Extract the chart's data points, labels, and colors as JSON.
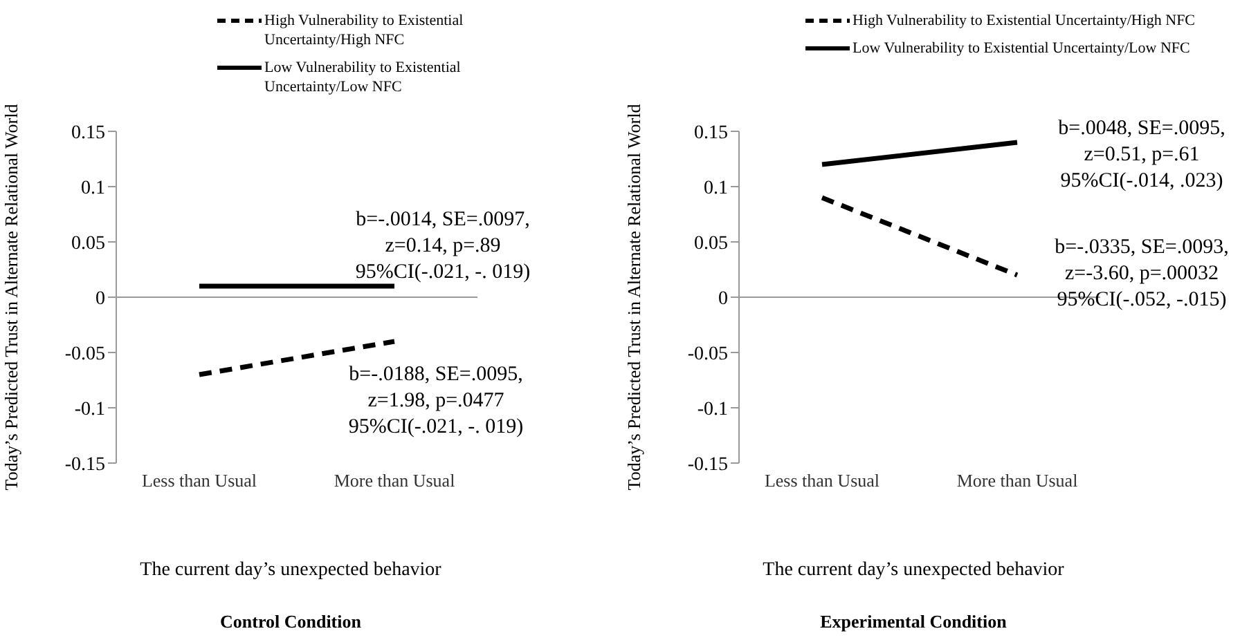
{
  "chart_data": [
    {
      "type": "line",
      "title": "Control Condition",
      "xlabel": "The current day’s unexpected behavior",
      "ylabel": "Today’s Predicted Trust in Alternate Relational World",
      "categories": [
        "Less than Usual",
        "More than Usual"
      ],
      "series": [
        {
          "name": "High Vulnerability to Existential Uncertainty/High NFC",
          "color": "#000000",
          "line_style": "dashed",
          "values": [
            -0.07,
            -0.04
          ]
        },
        {
          "name": "Low Vulnerability to Existential Uncertainty/Low NFC",
          "color": "#000000",
          "line_style": "solid",
          "values": [
            0.01,
            0.01
          ]
        }
      ],
      "ylim": [
        -0.15,
        0.15
      ],
      "yticks": [
        -0.15,
        -0.1,
        -0.05,
        0,
        0.05,
        0.1,
        0.15
      ],
      "legend": "top",
      "annotations": [
        "b=-.0014, SE=.0097,\nz=0.14, p=.89\n95%CI(-.021, -. 019)",
        "b=-.0188, SE=.0095,\nz=1.98, p=.0477\n95%CI(-.021, -. 019)"
      ]
    },
    {
      "type": "line",
      "title": "Experimental Condition",
      "xlabel": "The current day’s unexpected behavior",
      "ylabel": "Today’s Predicted Trust in Alternate Relational World",
      "categories": [
        "Less than Usual",
        "More than Usual"
      ],
      "series": [
        {
          "name": "High Vulnerability to Existential Uncertainty/High NFC",
          "color": "#000000",
          "line_style": "dashed",
          "values": [
            0.09,
            0.02
          ]
        },
        {
          "name": "Low Vulnerability to Existential Uncertainty/Low NFC",
          "color": "#000000",
          "line_style": "solid",
          "values": [
            0.12,
            0.14
          ]
        }
      ],
      "ylim": [
        -0.15,
        0.15
      ],
      "yticks": [
        -0.15,
        -0.1,
        -0.05,
        0,
        0.05,
        0.1,
        0.15
      ],
      "legend": "top",
      "annotations": [
        "b=.0048, SE=.0095,\nz=0.51, p=.61\n95%CI(-.014, .023)",
        "b=-.0335, SE=.0093,\nz=-3.60, p=.00032\n95%CI(-.052, -.015)"
      ]
    }
  ]
}
